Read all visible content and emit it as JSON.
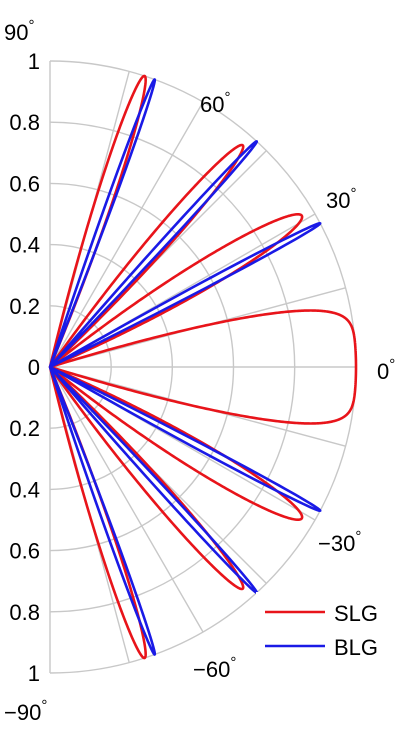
{
  "chart_data": {
    "type": "polar-line",
    "angle_range_deg": [
      -90,
      90
    ],
    "radius_range": [
      0,
      1
    ],
    "grid": true,
    "legend_position": "bottom-right",
    "radial_tick_labels": [
      "1",
      "0.8",
      "0.6",
      "0.4",
      "0.2",
      "0",
      "0.2",
      "0.4",
      "0.6",
      "0.8",
      "1"
    ],
    "angle_tick_labels": [
      {
        "angle": 90,
        "base": "90",
        "sup": "°"
      },
      {
        "angle": 60,
        "base": "60",
        "sup": "°"
      },
      {
        "angle": 30,
        "base": "30",
        "sup": "°"
      },
      {
        "angle": 0,
        "base": "0",
        "sup": "°"
      },
      {
        "angle": -30,
        "base": "−30",
        "sup": "°"
      },
      {
        "angle": -60,
        "base": "−60",
        "sup": "°"
      },
      {
        "angle": -90,
        "base": "−90",
        "sup": "°"
      }
    ],
    "series": [
      {
        "name": "SLG",
        "color": "#e8141a",
        "lobes": [
          {
            "angle_deg": 0,
            "radius": 1.0,
            "half_width_deg": 17,
            "shape": "flat"
          },
          {
            "angle_deg": 31,
            "radius": 0.96,
            "half_width_deg": 7.5,
            "shape": "lobe"
          },
          {
            "angle_deg": 49,
            "radius": 0.96,
            "half_width_deg": 5.5,
            "shape": "lobe"
          },
          {
            "angle_deg": 72,
            "radius": 1.0,
            "half_width_deg": 4.5,
            "shape": "lobe"
          },
          {
            "angle_deg": -31,
            "radius": 0.96,
            "half_width_deg": 7.5,
            "shape": "lobe"
          },
          {
            "angle_deg": -49,
            "radius": 0.96,
            "half_width_deg": 5.5,
            "shape": "lobe"
          },
          {
            "angle_deg": -72,
            "radius": 1.0,
            "half_width_deg": 4.5,
            "shape": "lobe"
          }
        ]
      },
      {
        "name": "BLG",
        "color": "#1a1ae6",
        "lobes": [
          {
            "angle_deg": 28,
            "radius": 1.0,
            "half_width_deg": 1.8,
            "shape": "lobe"
          },
          {
            "angle_deg": 47.5,
            "radius": 1.0,
            "half_width_deg": 1.8,
            "shape": "lobe"
          },
          {
            "angle_deg": 70,
            "radius": 1.0,
            "half_width_deg": 1.8,
            "shape": "lobe"
          },
          {
            "angle_deg": -28,
            "radius": 1.0,
            "half_width_deg": 1.8,
            "shape": "lobe"
          },
          {
            "angle_deg": -47.5,
            "radius": 1.0,
            "half_width_deg": 1.8,
            "shape": "lobe"
          },
          {
            "angle_deg": -70,
            "radius": 1.0,
            "half_width_deg": 1.8,
            "shape": "lobe"
          }
        ]
      }
    ]
  }
}
